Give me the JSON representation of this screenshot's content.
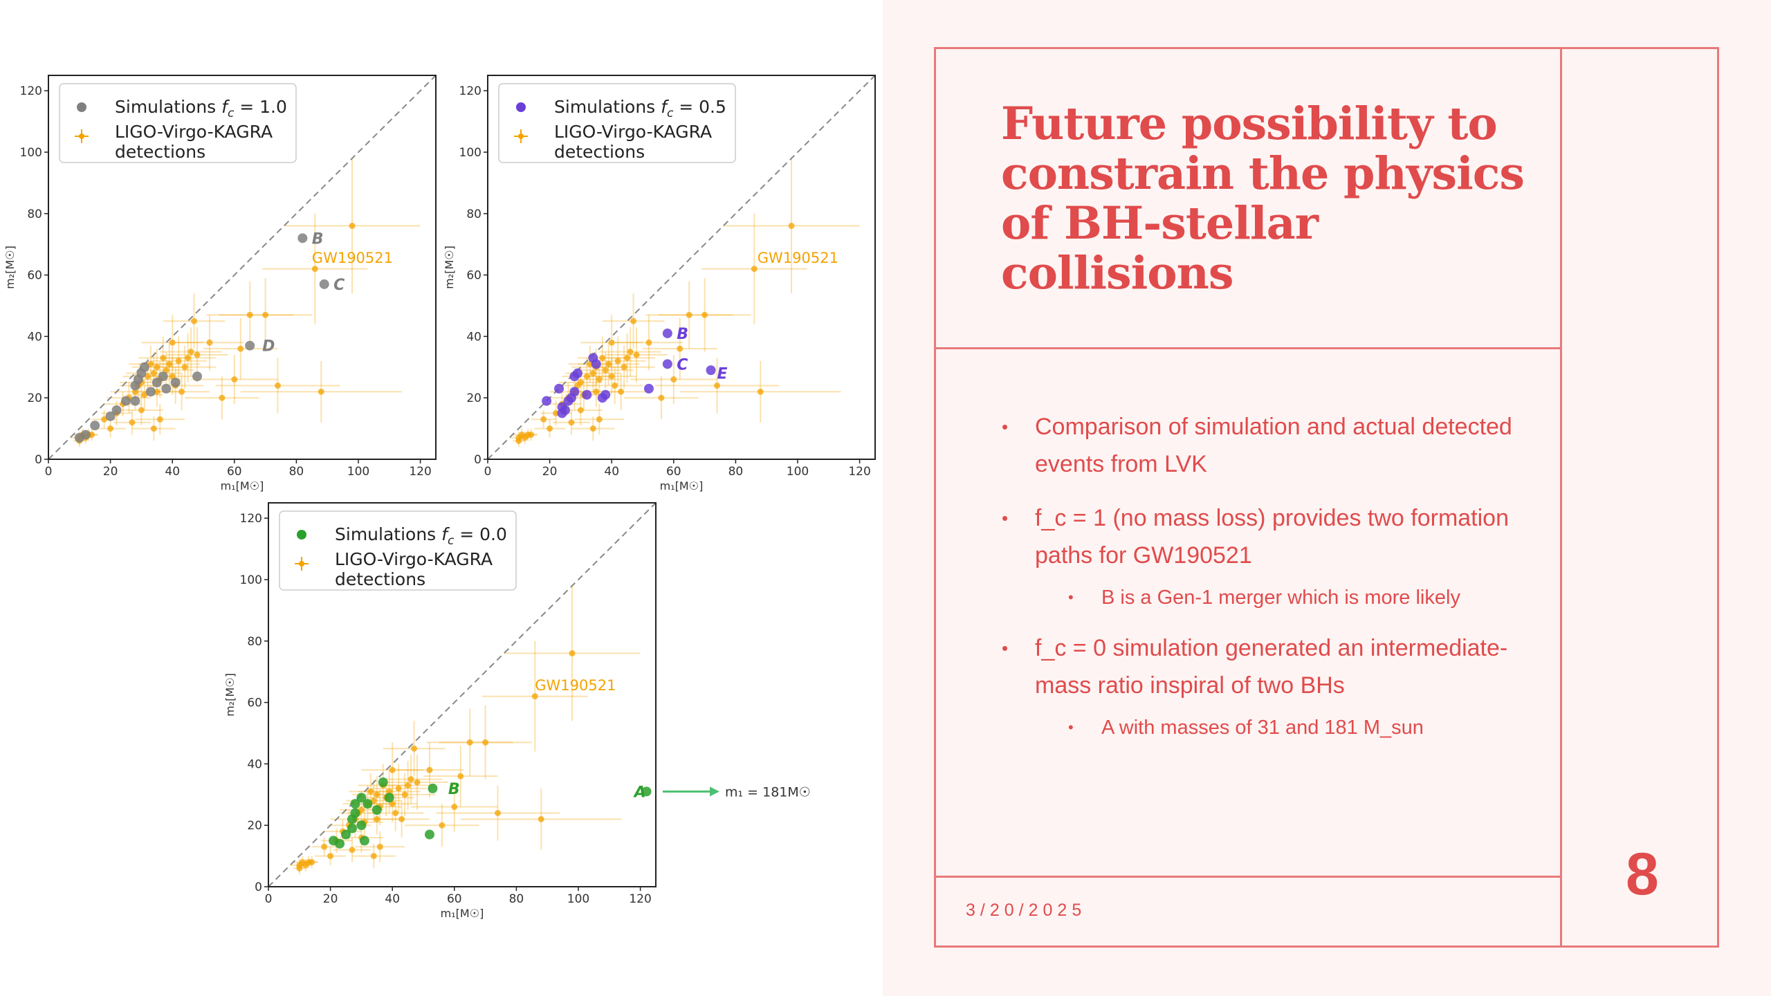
{
  "slide": {
    "title": "Future possibility to constrain the physics of BH-stellar collisions",
    "bullets": [
      {
        "text": "Comparison of simulation and actual detected events from LVK",
        "level": 1
      },
      {
        "text": "f_c = 1 (no mass loss) provides two formation paths for GW190521",
        "level": 1
      },
      {
        "text": "B is a Gen-1 merger which is more likely",
        "level": 2
      },
      {
        "text": "f_c = 0 simulation generated an intermediate-mass ratio inspiral of two BHs",
        "level": 1
      },
      {
        "text": "A with masses of 31 and 181 M_sun",
        "level": 2
      }
    ],
    "bullet_glyph": "•",
    "date": "3/20/2025",
    "page_number": "8"
  },
  "colors": {
    "accent": "#e04b4c",
    "frame": "#e8787a",
    "panel_bg": "#fdf4f3",
    "detection": "#f4a300",
    "sim_fc1": "#808080",
    "sim_fc05": "#6a3fd8",
    "sim_fc0": "#2ca02c"
  },
  "chart_data": [
    {
      "type": "scatter",
      "id": "fc1",
      "legend_sim_prefix": "Simulations ",
      "legend_sim_math": "f",
      "legend_sim_sub": "c",
      "legend_sim_value": " = 1.0",
      "legend_det_line1": "LIGO-Virgo-KAGRA",
      "legend_det_line2": "detections",
      "xlabel": "m₁[M☉]",
      "ylabel": "m₂[M☉]",
      "xlim": [
        0,
        125
      ],
      "ylim": [
        0,
        125
      ],
      "ticks": [
        "0",
        "20",
        "40",
        "60",
        "80",
        "100",
        "120"
      ],
      "tick_values": [
        0,
        20,
        40,
        60,
        80,
        100,
        120
      ],
      "annotation": "GW190521",
      "annotation_pos": [
        85,
        64
      ],
      "sim_color": "#808080",
      "simulations": [
        {
          "x": 10,
          "y": 7
        },
        {
          "x": 12,
          "y": 8
        },
        {
          "x": 15,
          "y": 11
        },
        {
          "x": 20,
          "y": 14
        },
        {
          "x": 22,
          "y": 16
        },
        {
          "x": 25,
          "y": 19
        },
        {
          "x": 28,
          "y": 24
        },
        {
          "x": 29,
          "y": 26
        },
        {
          "x": 30,
          "y": 28
        },
        {
          "x": 31,
          "y": 30
        },
        {
          "x": 33,
          "y": 22
        },
        {
          "x": 35,
          "y": 25
        },
        {
          "x": 37,
          "y": 27
        },
        {
          "x": 38,
          "y": 23
        },
        {
          "x": 41,
          "y": 25
        },
        {
          "x": 48,
          "y": 27
        },
        {
          "x": 28,
          "y": 19
        },
        {
          "x": 82,
          "y": 72
        },
        {
          "x": 89,
          "y": 57
        },
        {
          "x": 65,
          "y": 37
        }
      ],
      "labeled_points": [
        {
          "label": "B",
          "x": 85,
          "y": 72
        },
        {
          "label": "C",
          "x": 92,
          "y": 57
        },
        {
          "label": "D",
          "x": 69,
          "y": 37
        }
      ]
    },
    {
      "type": "scatter",
      "id": "fc05",
      "legend_sim_prefix": "Simulations ",
      "legend_sim_math": "f",
      "legend_sim_sub": "c",
      "legend_sim_value": " = 0.5",
      "legend_det_line1": "LIGO-Virgo-KAGRA",
      "legend_det_line2": "detections",
      "xlabel": "m₁[M☉]",
      "ylabel": "m₂[M☉]",
      "xlim": [
        0,
        125
      ],
      "ylim": [
        0,
        125
      ],
      "ticks": [
        "0",
        "20",
        "40",
        "60",
        "80",
        "100",
        "120"
      ],
      "tick_values": [
        0,
        20,
        40,
        60,
        80,
        100,
        120
      ],
      "annotation": "GW190521",
      "annotation_pos": [
        87,
        64
      ],
      "sim_color": "#6a3fd8",
      "simulations": [
        {
          "x": 19,
          "y": 19
        },
        {
          "x": 24,
          "y": 17
        },
        {
          "x": 24,
          "y": 15
        },
        {
          "x": 25,
          "y": 16
        },
        {
          "x": 26,
          "y": 19
        },
        {
          "x": 27,
          "y": 20
        },
        {
          "x": 28,
          "y": 22
        },
        {
          "x": 28,
          "y": 27
        },
        {
          "x": 29,
          "y": 28
        },
        {
          "x": 32,
          "y": 21
        },
        {
          "x": 34,
          "y": 33
        },
        {
          "x": 35,
          "y": 31
        },
        {
          "x": 37,
          "y": 20
        },
        {
          "x": 38,
          "y": 21
        },
        {
          "x": 52,
          "y": 23
        },
        {
          "x": 23,
          "y": 23
        },
        {
          "x": 58,
          "y": 41
        },
        {
          "x": 58,
          "y": 31
        },
        {
          "x": 72,
          "y": 29
        }
      ],
      "labeled_points": [
        {
          "label": "B",
          "x": 61,
          "y": 41
        },
        {
          "label": "C",
          "x": 61,
          "y": 31
        },
        {
          "label": "E",
          "x": 74,
          "y": 28
        }
      ]
    },
    {
      "type": "scatter",
      "id": "fc0",
      "legend_sim_prefix": "Simulations ",
      "legend_sim_math": "f",
      "legend_sim_sub": "c",
      "legend_sim_value": " = 0.0",
      "legend_det_line1": "LIGO-Virgo-KAGRA",
      "legend_det_line2": "detections",
      "xlabel": "m₁[M☉]",
      "ylabel": "m₂[M☉]",
      "xlim": [
        0,
        125
      ],
      "ylim": [
        0,
        125
      ],
      "ticks": [
        "0",
        "20",
        "40",
        "60",
        "80",
        "100",
        "120"
      ],
      "tick_values": [
        0,
        20,
        40,
        60,
        80,
        100,
        120
      ],
      "annotation": "GW190521",
      "annotation_pos": [
        86,
        64
      ],
      "sim_color": "#2ca02c",
      "simulations": [
        {
          "x": 21,
          "y": 15
        },
        {
          "x": 23,
          "y": 14
        },
        {
          "x": 25,
          "y": 17
        },
        {
          "x": 27,
          "y": 19
        },
        {
          "x": 27,
          "y": 22
        },
        {
          "x": 28,
          "y": 24
        },
        {
          "x": 28,
          "y": 27
        },
        {
          "x": 30,
          "y": 29
        },
        {
          "x": 31,
          "y": 15
        },
        {
          "x": 32,
          "y": 27
        },
        {
          "x": 35,
          "y": 25
        },
        {
          "x": 37,
          "y": 34
        },
        {
          "x": 39,
          "y": 29
        },
        {
          "x": 52,
          "y": 17
        },
        {
          "x": 53,
          "y": 32
        },
        {
          "x": 30,
          "y": 20
        },
        {
          "x": 122,
          "y": 31
        }
      ],
      "labeled_points": [
        {
          "label": "B",
          "x": 58,
          "y": 32
        },
        {
          "label": "A",
          "x": 118,
          "y": 31
        }
      ],
      "offscale_arrow": {
        "text": "m₁ = 181M☉",
        "y": 31
      }
    }
  ],
  "detections": [
    {
      "x": 10,
      "y": 7,
      "ex": 3,
      "ey": 2
    },
    {
      "x": 11,
      "y": 8,
      "ex": 3,
      "ey": 2
    },
    {
      "x": 12,
      "y": 7,
      "ex": 2,
      "ey": 2
    },
    {
      "x": 13,
      "y": 8,
      "ex": 3,
      "ey": 2
    },
    {
      "x": 14,
      "y": 8,
      "ex": 2,
      "ey": 2
    },
    {
      "x": 10,
      "y": 6,
      "ex": 2,
      "ey": 2
    },
    {
      "x": 24,
      "y": 18,
      "ex": 6,
      "ey": 4
    },
    {
      "x": 26,
      "y": 20,
      "ex": 7,
      "ey": 5
    },
    {
      "x": 28,
      "y": 22,
      "ex": 8,
      "ey": 6
    },
    {
      "x": 30,
      "y": 25,
      "ex": 7,
      "ey": 5
    },
    {
      "x": 32,
      "y": 27,
      "ex": 8,
      "ey": 6
    },
    {
      "x": 34,
      "y": 28,
      "ex": 9,
      "ey": 7
    },
    {
      "x": 35,
      "y": 30,
      "ex": 8,
      "ey": 6
    },
    {
      "x": 36,
      "y": 26,
      "ex": 7,
      "ey": 6
    },
    {
      "x": 38,
      "y": 29,
      "ex": 9,
      "ey": 6
    },
    {
      "x": 39,
      "y": 31,
      "ex": 10,
      "ey": 7
    },
    {
      "x": 40,
      "y": 27,
      "ex": 8,
      "ey": 6
    },
    {
      "x": 42,
      "y": 32,
      "ex": 9,
      "ey": 8
    },
    {
      "x": 44,
      "y": 30,
      "ex": 10,
      "ey": 7
    },
    {
      "x": 45,
      "y": 33,
      "ex": 9,
      "ey": 8
    },
    {
      "x": 46,
      "y": 35,
      "ex": 10,
      "ey": 8
    },
    {
      "x": 37,
      "y": 33,
      "ex": 8,
      "ey": 7
    },
    {
      "x": 33,
      "y": 31,
      "ex": 7,
      "ey": 6
    },
    {
      "x": 31,
      "y": 21,
      "ex": 6,
      "ey": 5
    },
    {
      "x": 29,
      "y": 24,
      "ex": 6,
      "ey": 4
    },
    {
      "x": 35,
      "y": 22,
      "ex": 8,
      "ey": 5
    },
    {
      "x": 41,
      "y": 24,
      "ex": 9,
      "ey": 6
    },
    {
      "x": 48,
      "y": 34,
      "ex": 10,
      "ey": 9
    },
    {
      "x": 22,
      "y": 15,
      "ex": 5,
      "ey": 4
    },
    {
      "x": 27,
      "y": 12,
      "ex": 6,
      "ey": 4
    },
    {
      "x": 30,
      "y": 16,
      "ex": 7,
      "ey": 5
    },
    {
      "x": 36,
      "y": 13,
      "ex": 8,
      "ey": 5
    },
    {
      "x": 43,
      "y": 22,
      "ex": 9,
      "ey": 6
    },
    {
      "x": 52,
      "y": 38,
      "ex": 11,
      "ey": 9
    },
    {
      "x": 56,
      "y": 20,
      "ex": 12,
      "ey": 7
    },
    {
      "x": 60,
      "y": 26,
      "ex": 14,
      "ey": 8
    },
    {
      "x": 62,
      "y": 36,
      "ex": 12,
      "ey": 10
    },
    {
      "x": 65,
      "y": 47,
      "ex": 14,
      "ey": 11
    },
    {
      "x": 70,
      "y": 47,
      "ex": 15,
      "ey": 12
    },
    {
      "x": 74,
      "y": 24,
      "ex": 20,
      "ey": 9
    },
    {
      "x": 88,
      "y": 22,
      "ex": 26,
      "ey": 10
    },
    {
      "x": 86,
      "y": 62,
      "ex": 17,
      "ey": 18
    },
    {
      "x": 98,
      "y": 76,
      "ex": 22,
      "ey": 22
    },
    {
      "x": 47,
      "y": 45,
      "ex": 10,
      "ey": 9
    },
    {
      "x": 18,
      "y": 13,
      "ex": 4,
      "ey": 3
    },
    {
      "x": 20,
      "y": 10,
      "ex": 5,
      "ey": 3
    },
    {
      "x": 34,
      "y": 10,
      "ex": 7,
      "ey": 4
    },
    {
      "x": 40,
      "y": 38,
      "ex": 10,
      "ey": 9
    }
  ]
}
